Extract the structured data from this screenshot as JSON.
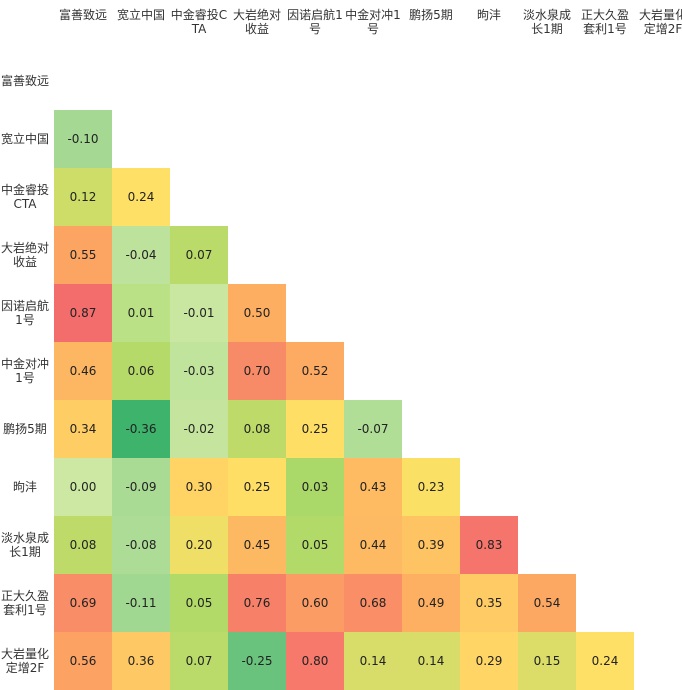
{
  "chart_data": {
    "type": "heatmap",
    "title": "",
    "labels": [
      "富善致远",
      "宽立中国",
      "中金睿投CTA",
      "大岩绝对收益",
      "因诺启航1号",
      "中金对冲1号",
      "鹏扬5期",
      "昫沣",
      "淡水泉成长1期",
      "正大久盈套利1号",
      "大岩量化定增2F"
    ],
    "matrix": [
      [],
      [
        -0.1
      ],
      [
        0.12,
        0.24
      ],
      [
        0.55,
        -0.04,
        0.07
      ],
      [
        0.87,
        0.01,
        -0.01,
        0.5
      ],
      [
        0.46,
        0.06,
        -0.03,
        0.7,
        0.52
      ],
      [
        0.34,
        -0.36,
        -0.02,
        0.08,
        0.25,
        -0.07
      ],
      [
        0.0,
        -0.09,
        0.3,
        0.25,
        0.03,
        0.43,
        0.23
      ],
      [
        0.08,
        -0.08,
        0.2,
        0.45,
        0.05,
        0.44,
        0.39,
        0.83
      ],
      [
        0.69,
        -0.11,
        0.05,
        0.76,
        0.6,
        0.68,
        0.49,
        0.35,
        0.54
      ],
      [
        0.56,
        0.36,
        0.07,
        -0.25,
        0.8,
        0.14,
        0.14,
        0.29,
        0.15,
        0.24
      ]
    ],
    "value_format": "2 decimals",
    "legend": "none",
    "grid": false,
    "color_scale": {
      "low": "#3db36b",
      "mid_low": "#a6d96a",
      "mid": "#ffe066",
      "mid_high": "#fdae61",
      "high": "#f46d6d"
    }
  }
}
